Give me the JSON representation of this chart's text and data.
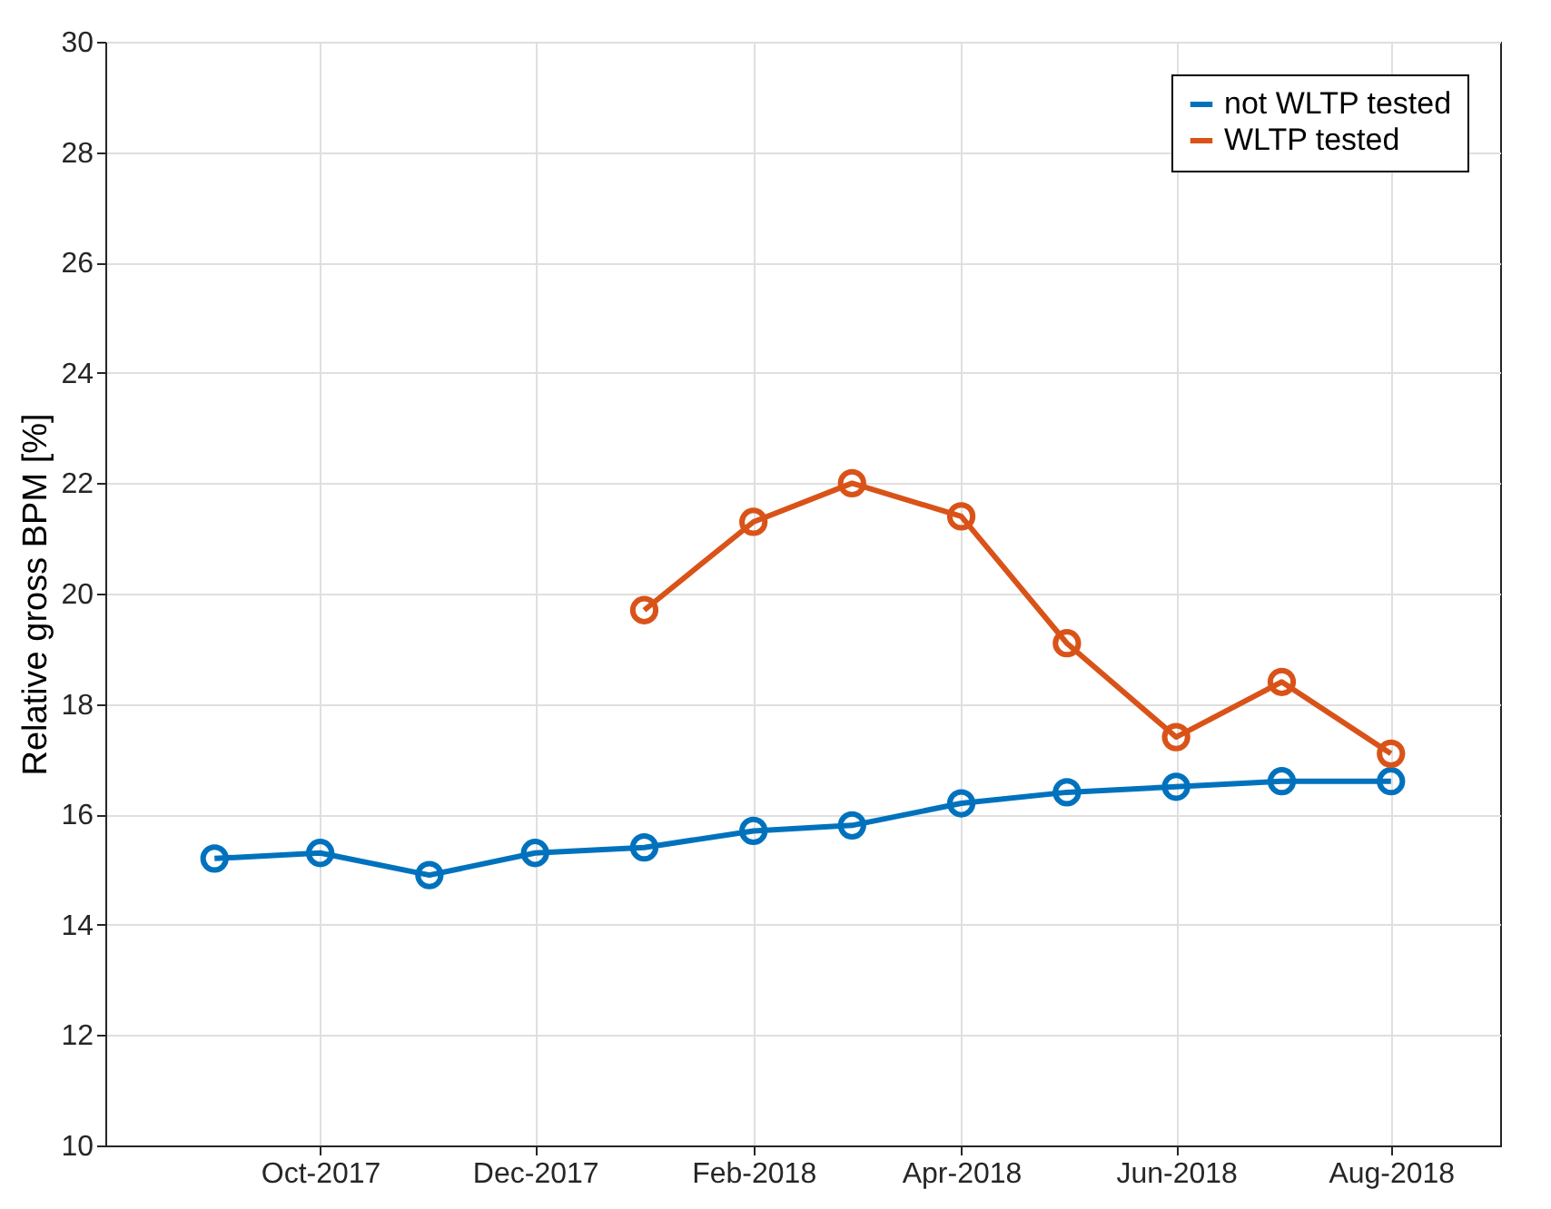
{
  "chart_data": {
    "type": "line",
    "ylabel": "Relative gross BPM [%]",
    "x": [
      "2017-09",
      "2017-10",
      "2017-11",
      "2017-12",
      "2018-01",
      "2018-02",
      "2018-03",
      "2018-04",
      "2018-05",
      "2018-06",
      "2018-07",
      "2018-08"
    ],
    "series": [
      {
        "name": "not WLTP tested",
        "color": "#0072bd",
        "values": [
          15.2,
          15.3,
          14.9,
          15.3,
          15.4,
          15.7,
          15.8,
          16.2,
          16.4,
          16.5,
          16.6,
          16.6
        ]
      },
      {
        "name": "WLTP tested",
        "color": "#d95319",
        "values": [
          null,
          null,
          null,
          null,
          19.7,
          21.3,
          22.0,
          21.4,
          19.1,
          17.4,
          18.4,
          17.1
        ]
      }
    ],
    "xlim": [
      "2017-08",
      "2018-09"
    ],
    "xticks": [
      {
        "value": "2017-10",
        "label": "Oct-2017"
      },
      {
        "value": "2017-12",
        "label": "Dec-2017"
      },
      {
        "value": "2018-02",
        "label": "Feb-2018"
      },
      {
        "value": "2018-04",
        "label": "Apr-2018"
      },
      {
        "value": "2018-06",
        "label": "Jun-2018"
      },
      {
        "value": "2018-08",
        "label": "Aug-2018"
      }
    ],
    "ylim": [
      10,
      30
    ],
    "yticks": [
      10,
      12,
      14,
      16,
      18,
      20,
      22,
      24,
      26,
      28,
      30
    ],
    "grid": true,
    "legend": "top right",
    "marker": "circle",
    "line_style": "solid"
  }
}
